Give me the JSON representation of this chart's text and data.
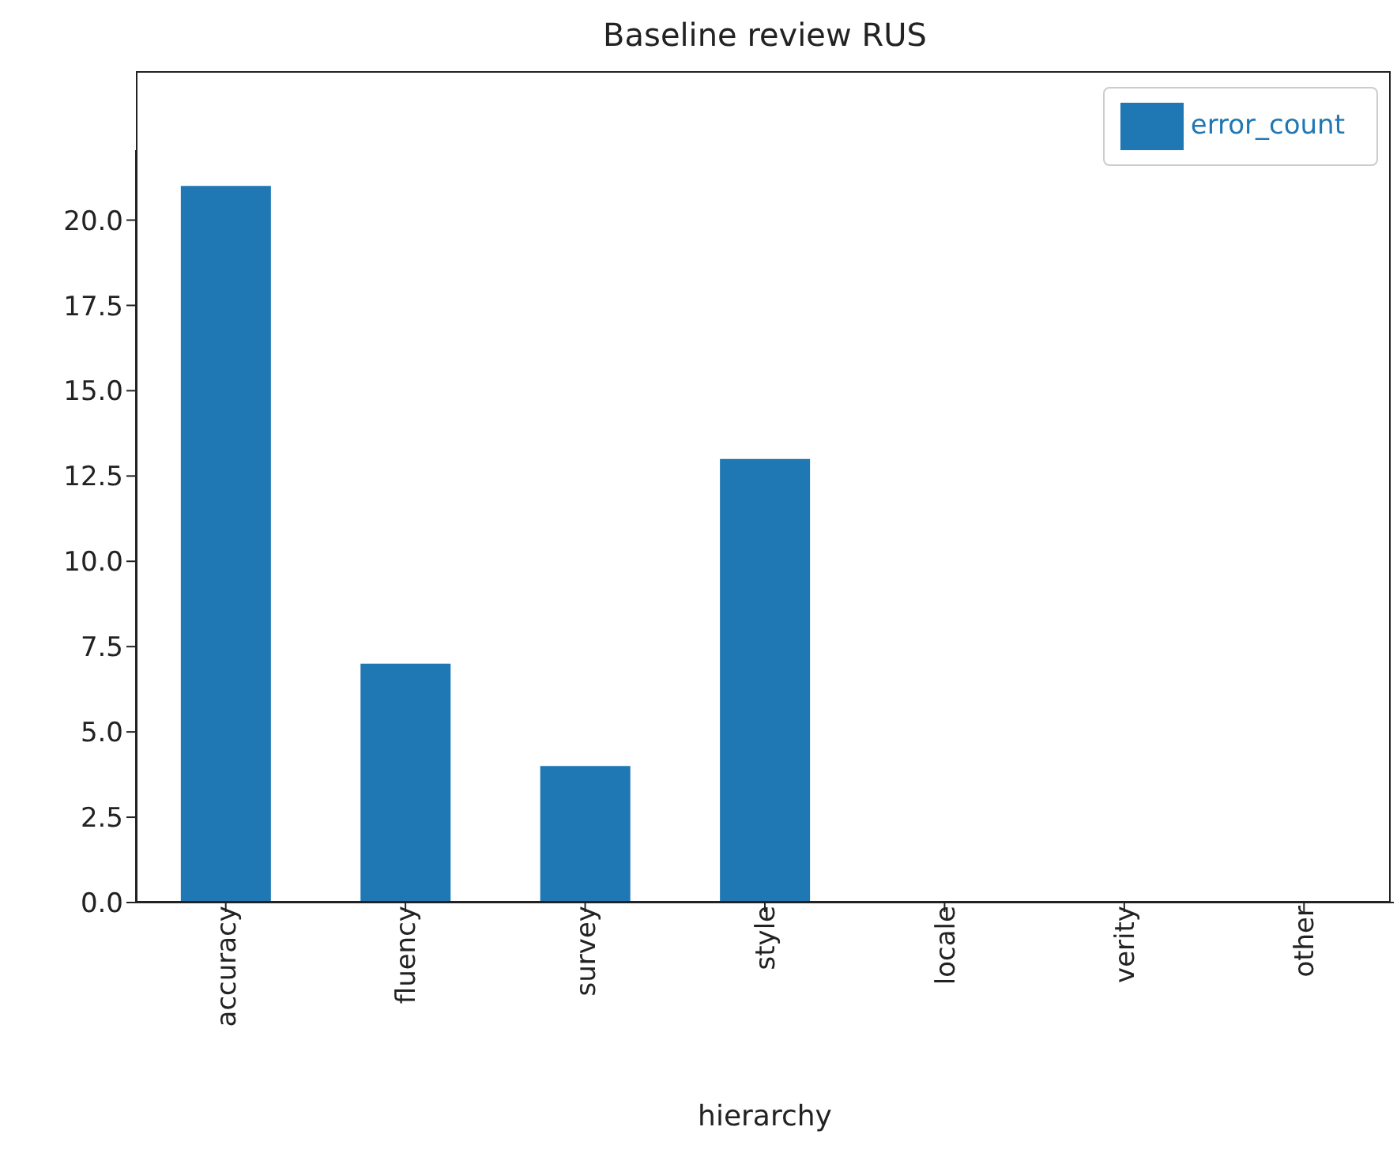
{
  "chart_data": {
    "type": "bar",
    "title": "Baseline review RUS",
    "xlabel": "hierarchy",
    "categories": [
      "accuracy",
      "fluency",
      "survey",
      "style",
      "locale",
      "verity",
      "other"
    ],
    "series": [
      {
        "name": "error_count",
        "color": "#1f77b4",
        "values": [
          21,
          7,
          4,
          13,
          0,
          0,
          0
        ]
      }
    ],
    "ylim": [
      0,
      22.05
    ],
    "yticks": [
      {
        "value": 0,
        "label": "0.0"
      },
      {
        "value": 2.5,
        "label": "2.5"
      },
      {
        "value": 5,
        "label": "5.0"
      },
      {
        "value": 7.5,
        "label": "7.5"
      },
      {
        "value": 10,
        "label": "10.0"
      },
      {
        "value": 12.5,
        "label": "12.5"
      },
      {
        "value": 15,
        "label": "15.0"
      },
      {
        "value": 17.5,
        "label": "17.5"
      },
      {
        "value": 20,
        "label": "20.0"
      }
    ],
    "grid": false,
    "legend": "top right"
  }
}
